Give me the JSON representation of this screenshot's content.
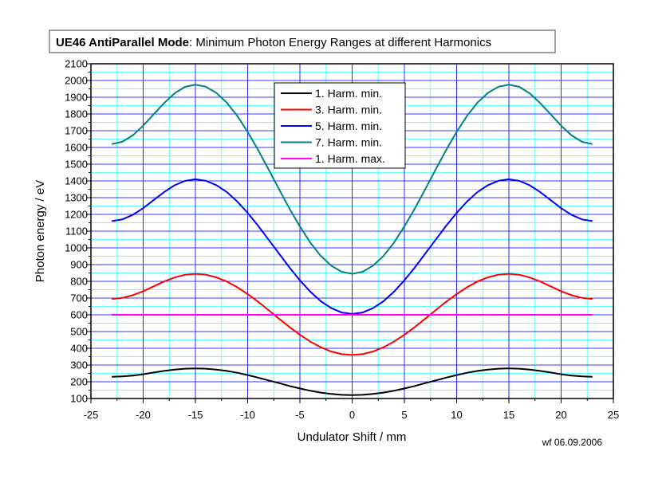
{
  "chart_data": {
    "type": "line",
    "title_bold": "UE46 AntiParallel Mode",
    "title_rest": ": Minimum Photon Energy Ranges at different Harmonics",
    "xlabel": "Undulator Shift / mm",
    "ylabel": "Photon energy / eV",
    "footnote": "wf 06.09.2006",
    "xlim": [
      -25,
      25
    ],
    "ylim": [
      100,
      2100
    ],
    "xticks": [
      -25,
      -20,
      -15,
      -10,
      -5,
      0,
      5,
      10,
      15,
      20,
      25
    ],
    "yticks": [
      100,
      200,
      300,
      400,
      500,
      600,
      700,
      800,
      900,
      1000,
      1100,
      1200,
      1300,
      1400,
      1500,
      1600,
      1700,
      1800,
      1900,
      2000,
      2100
    ],
    "grid": true,
    "legend_position": "top-center",
    "x": [
      -23,
      -22,
      -21,
      -20,
      -19,
      -18,
      -17,
      -16,
      -15,
      -14,
      -13,
      -12,
      -11,
      -10,
      -9,
      -8,
      -7,
      -6,
      -5,
      -4,
      -3,
      -2,
      -1,
      0,
      1,
      2,
      3,
      4,
      5,
      6,
      7,
      8,
      9,
      10,
      11,
      12,
      13,
      14,
      15,
      16,
      17,
      18,
      19,
      20,
      21,
      22,
      23
    ],
    "series": [
      {
        "name": "1. Harm. min.",
        "color": "#000000",
        "values": [
          230,
          232,
          237,
          245,
          255,
          265,
          273,
          278,
          280,
          278,
          273,
          265,
          254,
          240,
          225,
          208,
          192,
          175,
          160,
          146,
          135,
          127,
          122,
          120,
          122,
          127,
          135,
          146,
          160,
          175,
          192,
          208,
          225,
          240,
          254,
          265,
          273,
          278,
          280,
          278,
          273,
          265,
          255,
          245,
          237,
          232,
          230
        ]
      },
      {
        "name": "3. Harm. min.",
        "color": "#ff0000",
        "values": [
          695,
          701,
          717,
          741,
          770,
          799,
          823,
          839,
          845,
          840,
          824,
          799,
          765,
          724,
          678,
          628,
          577,
          527,
          481,
          440,
          406,
          381,
          365,
          360,
          365,
          381,
          406,
          440,
          481,
          527,
          577,
          628,
          678,
          724,
          765,
          799,
          824,
          840,
          845,
          839,
          823,
          799,
          770,
          741,
          717,
          701,
          695
        ]
      },
      {
        "name": "5. Harm. min.",
        "color": "#0000ff",
        "values": [
          1160,
          1170,
          1197,
          1237,
          1285,
          1333,
          1374,
          1400,
          1410,
          1401,
          1375,
          1334,
          1277,
          1209,
          1132,
          1049,
          966,
          883,
          806,
          738,
          681,
          640,
          614,
          605,
          614,
          640,
          681,
          738,
          806,
          883,
          966,
          1049,
          1132,
          1209,
          1277,
          1334,
          1375,
          1401,
          1410,
          1400,
          1374,
          1333,
          1285,
          1237,
          1197,
          1170,
          1160
        ]
      },
      {
        "name": "7. Harm. min.",
        "color": "#008080",
        "values": [
          1620,
          1634,
          1672,
          1730,
          1798,
          1865,
          1923,
          1962,
          1975,
          1963,
          1926,
          1868,
          1789,
          1693,
          1585,
          1469,
          1351,
          1235,
          1128,
          1031,
          952,
          894,
          857,
          845,
          857,
          894,
          952,
          1031,
          1128,
          1235,
          1351,
          1469,
          1585,
          1693,
          1789,
          1868,
          1926,
          1963,
          1975,
          1962,
          1923,
          1865,
          1798,
          1730,
          1672,
          1634,
          1620
        ]
      },
      {
        "name": "1. Harm. max.",
        "color": "#ff00ff",
        "values": [
          600,
          600,
          600,
          600,
          600,
          600,
          600,
          600,
          600,
          600,
          600,
          600,
          600,
          600,
          600,
          600,
          600,
          600,
          600,
          600,
          600,
          600,
          600,
          600,
          600,
          600,
          600,
          600,
          600,
          600,
          600,
          600,
          600,
          600,
          600,
          600,
          600,
          600,
          600,
          600,
          600,
          600,
          600,
          600,
          600,
          600,
          600
        ]
      }
    ]
  }
}
